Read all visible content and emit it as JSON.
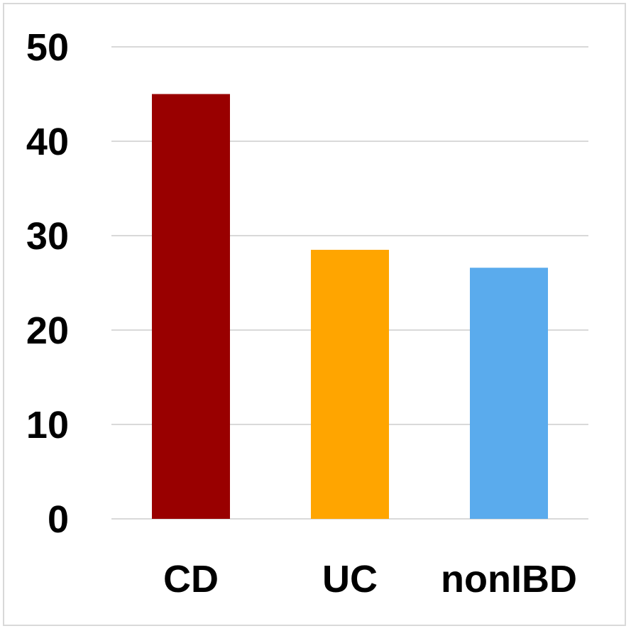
{
  "chart_data": {
    "type": "bar",
    "categories": [
      "CD",
      "UC",
      "nonIBD"
    ],
    "values": [
      45,
      28.5,
      26.6
    ],
    "colors": [
      "#990000",
      "#ffa500",
      "#5aabed"
    ],
    "title": "",
    "xlabel": "",
    "ylabel": "",
    "ylim": [
      0,
      50
    ],
    "yticks": [
      "0",
      "10",
      "20",
      "30",
      "40",
      "50"
    ],
    "grid": true,
    "legend": "none"
  }
}
